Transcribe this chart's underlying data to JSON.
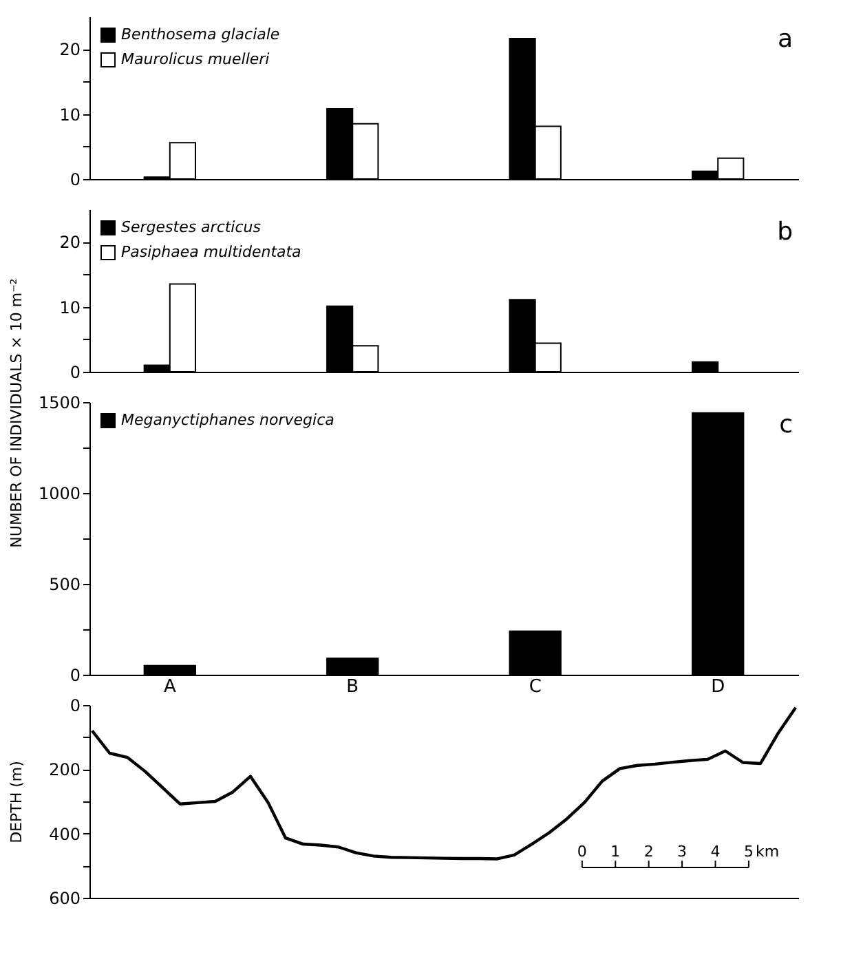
{
  "chart_data": [
    {
      "type": "bar",
      "categories": [
        null,
        null,
        null,
        null
      ],
      "series": [
        {
          "name": "Benthosema glaciale",
          "color": "#000000",
          "values": [
            0.3,
            10.8,
            21.6,
            1.2
          ]
        },
        {
          "name": "Maurolicus muelleri",
          "color": "#ffffff",
          "values": [
            5.6,
            8.5,
            8.1,
            3.2
          ]
        }
      ],
      "ylim": [
        0,
        25
      ],
      "yticks": [
        0,
        {
          "value": 5,
          "label": null
        },
        10,
        {
          "value": 15,
          "label": null
        },
        20
      ],
      "tick_labels": "y",
      "legend": "top left",
      "annotations": [
        "a"
      ]
    },
    {
      "type": "bar",
      "categories": [
        null,
        null,
        null,
        null
      ],
      "ylabel": "NUMBER OF INDIVIDUALS × 10 m⁻²",
      "series": [
        {
          "name": "Sergestes arcticus",
          "color": "#000000",
          "values": [
            1.0,
            10.1,
            11.1,
            1.5
          ]
        },
        {
          "name": "Pasiphaea multidentata",
          "color": "#ffffff",
          "values": [
            13.5,
            4.0,
            4.4,
            null
          ]
        }
      ],
      "ylim": [
        0,
        25
      ],
      "yticks": [
        0,
        {
          "value": 5,
          "label": null
        },
        10,
        {
          "value": 15,
          "label": null
        },
        20
      ],
      "tick_labels": "y",
      "legend": "top left",
      "annotations": [
        "b"
      ]
    },
    {
      "type": "bar",
      "categories": [
        "A",
        "B",
        "C",
        "D"
      ],
      "series": [
        {
          "name": "Meganyctiphanes norvegica",
          "color": "#000000",
          "values": [
            50,
            90,
            240,
            1440
          ]
        }
      ],
      "ylim": [
        0,
        1500
      ],
      "yticks": [
        0,
        {
          "value": 250,
          "label": null
        },
        500,
        {
          "value": 750,
          "label": null
        },
        1000,
        {
          "value": 1250,
          "label": null
        },
        1500
      ],
      "legend": "top left",
      "annotations": [
        "c"
      ]
    },
    {
      "type": "line",
      "ylabel": "DEPTH (m)",
      "categories": [
        null,
        null,
        null,
        null,
        null,
        null,
        null,
        null,
        null,
        null,
        null,
        null,
        null,
        null,
        null,
        null,
        null,
        null,
        null,
        null,
        null,
        null,
        null,
        null,
        null,
        null,
        null,
        null,
        null,
        null,
        null,
        null,
        null,
        null,
        null,
        null,
        null,
        null,
        null,
        null,
        null
      ],
      "series": [
        {
          "color": "#000000",
          "values": [
            80,
            150,
            163,
            206,
            257,
            308,
            304,
            300,
            271,
            222,
            303,
            414,
            433,
            436,
            442,
            460,
            470,
            474,
            475,
            476,
            477,
            478,
            478,
            479,
            467,
            433,
            397,
            354,
            303,
            237,
            198,
            188,
            184,
            178,
            173,
            169,
            143,
            179,
            182,
            88,
            8
          ]
        }
      ],
      "ylim": [
        600,
        0
      ],
      "yticks": [
        0,
        {
          "value": 100,
          "label": null
        },
        200,
        {
          "value": 300,
          "label": null
        },
        400,
        {
          "value": 500,
          "label": null
        },
        600
      ],
      "tick_labels": "y",
      "marker": "none",
      "line_style": "solid",
      "annotations": [
        "0",
        "1",
        "2",
        "3",
        "4",
        "5",
        "km"
      ]
    }
  ]
}
